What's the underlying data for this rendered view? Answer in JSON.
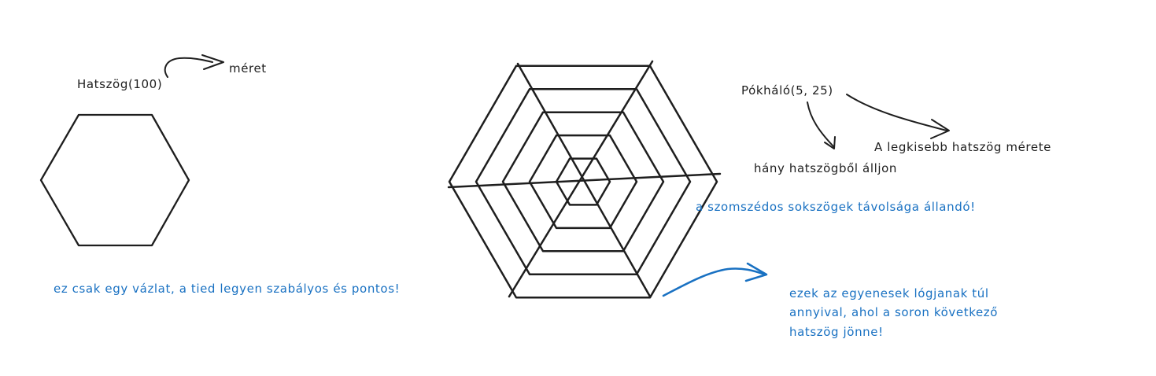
{
  "labels": {
    "hexagon_call": "Hatszög(100)",
    "size_word": "méret",
    "web_call": "Pókháló(5, 25)",
    "count_note": "hány hatszögből álljon",
    "smallest_note": "A legkisebb hatszög mérete",
    "distance_note": "a szomszédos sokszögek távolsága állandó!",
    "sketch_note": "ez csak egy vázlat, a tied legyen szabályos és pontos!",
    "overhang_note": [
      "ezek az egyenesek lógjanak túl",
      "annyival, ahol a soron következő",
      "hatszög jönne!"
    ]
  },
  "colors": {
    "ink": "#1e1e1e",
    "note": "#1971c2",
    "background": "#ffffff"
  },
  "spider_web": {
    "hexagon_count": 5,
    "spacing": 25
  }
}
